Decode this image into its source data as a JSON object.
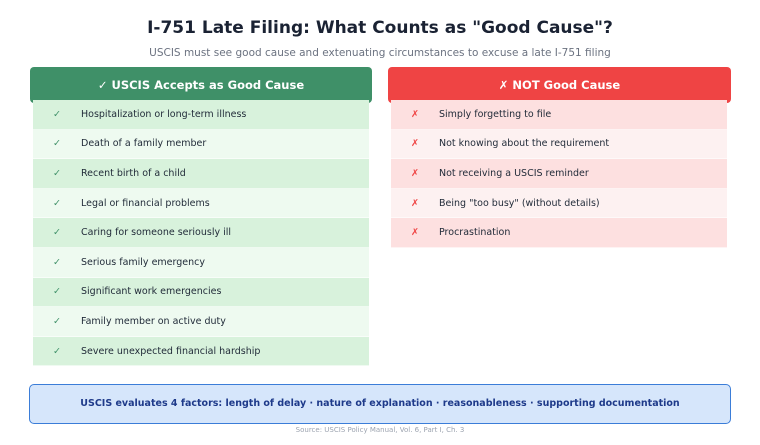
{
  "title": "I-751 Late Filing: What Counts as \"Good Cause\"?",
  "subtitle": "USCIS must see good cause and extenuating circumstances to excuse a late I-751 filing",
  "accepted": {
    "header": "✓  USCIS Accepts as Good Cause",
    "icon": "✓",
    "items": [
      "Hospitalization or long-term illness",
      "Death of a family member",
      "Recent birth of a child",
      "Legal or financial problems",
      "Caring for someone seriously ill",
      "Serious family emergency",
      "Significant work emergencies",
      "Family member on active duty",
      "Severe unexpected financial hardship"
    ]
  },
  "rejected": {
    "header": "✗  NOT Good Cause",
    "icon": "✗",
    "items": [
      "Simply forgetting to file",
      "Not knowing about the requirement",
      "Not receiving a USCIS reminder",
      "Being \"too busy\" (without details)",
      "Procrastination"
    ]
  },
  "footer": "USCIS evaluates 4 factors: length of delay · nature of explanation · reasonableness · supporting documentation",
  "source": "Source: USCIS Policy Manual, Vol. 6, Part I, Ch. 3"
}
